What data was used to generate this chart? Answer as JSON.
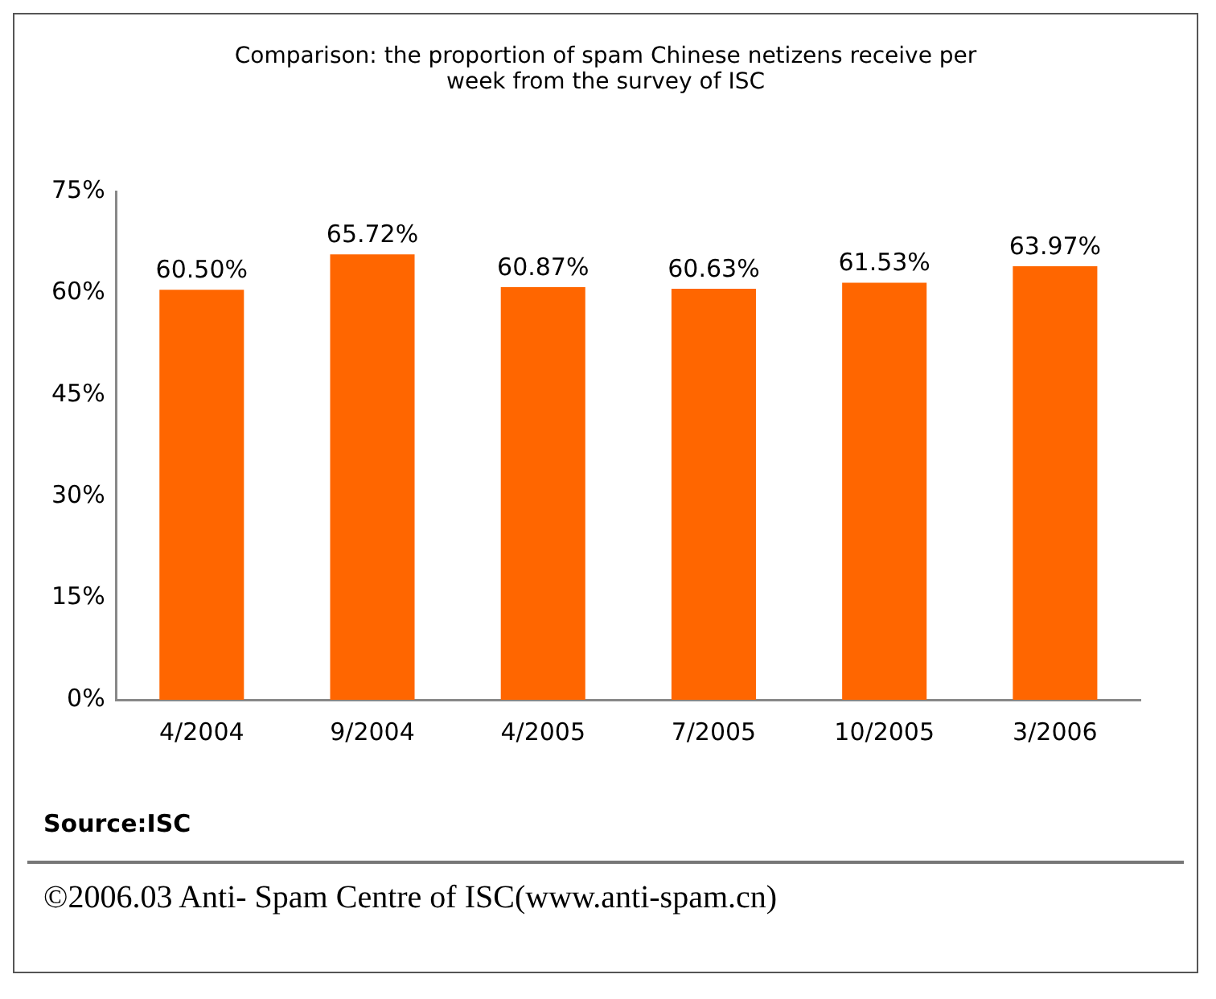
{
  "chart_data": {
    "type": "bar",
    "title": "Comparison: the proportion of spam Chinese netizens receive per week from the survey of ISC",
    "categories": [
      "4/2004",
      "9/2004",
      "4/2005",
      "7/2005",
      "10/2005",
      "3/2006"
    ],
    "values": [
      60.5,
      65.72,
      60.87,
      60.63,
      61.53,
      63.97
    ],
    "value_labels": [
      "60.50%",
      "65.72%",
      "60.87%",
      "60.63%",
      "61.53%",
      "63.97%"
    ],
    "color": "#ff6600",
    "ylim": [
      0,
      75
    ],
    "yticks": [
      {
        "value": 0,
        "label": "0%"
      },
      {
        "value": 15,
        "label": "15%"
      },
      {
        "value": 30,
        "label": "30%"
      },
      {
        "value": 45,
        "label": "45%"
      },
      {
        "value": 60,
        "label": "60%"
      },
      {
        "value": 75,
        "label": "75%"
      }
    ],
    "grid": false,
    "annotations": [
      "Source:ISC",
      "©2006.03 Anti- Spam Centre of ISC(www.anti-spam.cn)"
    ]
  }
}
